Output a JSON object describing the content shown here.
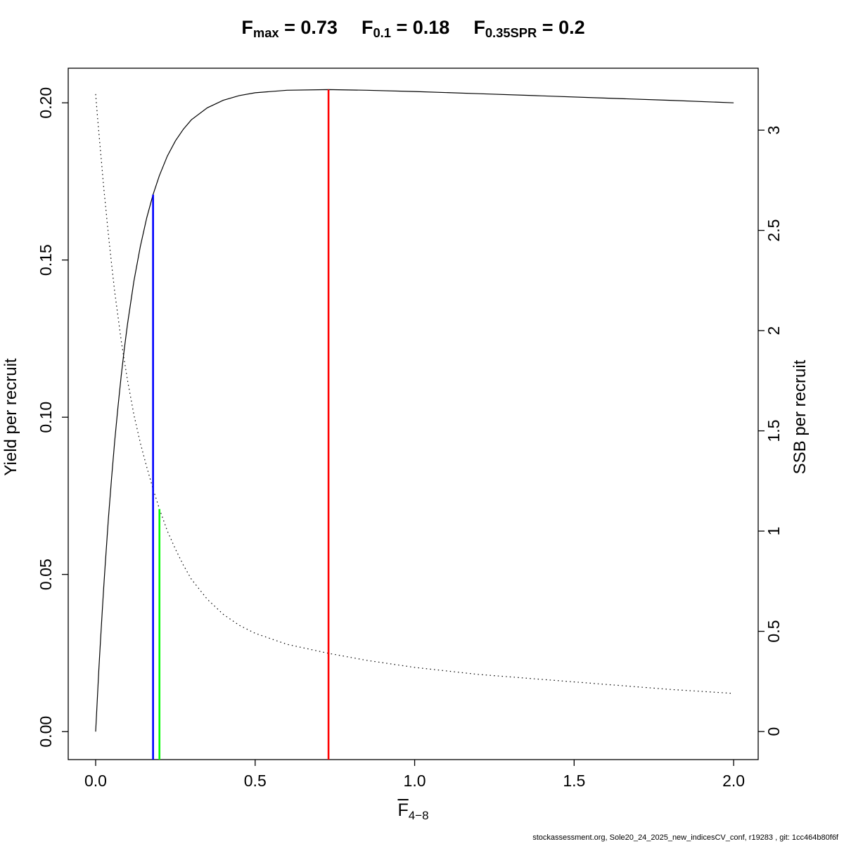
{
  "title": {
    "parts": [
      {
        "base": "F",
        "sub": "max",
        "eq": " = 0.73"
      },
      {
        "base": "F",
        "sub": "0.1",
        "eq": " = 0.18"
      },
      {
        "base": "F",
        "sub": "0.35SPR",
        "eq": " = 0.2"
      }
    ]
  },
  "axes": {
    "x": {
      "label_base": "F",
      "label_sub": "4−8",
      "ticks": [
        0,
        0.5,
        1,
        1.5,
        2
      ],
      "tick_labels": [
        "0.0",
        "0.5",
        "1.0",
        "1.5",
        "2.0"
      ],
      "range": [
        -0.086,
        2.077
      ]
    },
    "y_left": {
      "label": "Yield per recruit",
      "ticks": [
        0,
        0.05,
        0.1,
        0.15,
        0.2
      ],
      "tick_labels": [
        "0.00",
        "0.05",
        "0.10",
        "0.15",
        "0.20"
      ],
      "range": [
        -0.0089,
        0.211
      ]
    },
    "y_right": {
      "label": "SSB per recruit",
      "ticks": [
        0,
        0.5,
        1,
        1.5,
        2,
        2.5,
        3
      ],
      "tick_labels": [
        "0",
        "0.5",
        "1",
        "1.5",
        "2",
        "2.5",
        "3"
      ],
      "range": [
        -0.14,
        3.309
      ]
    }
  },
  "chart_data": {
    "type": "line",
    "title": "F_max = 0.73   F_0.1 = 0.18   F_0.35SPR = 0.2",
    "xlabel": "Fbar(4−8)",
    "ylabel_left": "Yield per recruit",
    "ylabel_right": "SSB per recruit",
    "x_range": [
      -0.086,
      2.077
    ],
    "grid": false,
    "reference_points": [
      {
        "name": "F_max",
        "value": 0.73,
        "color": "#ff0000"
      },
      {
        "name": "F_0.1",
        "value": 0.18,
        "color": "#0000ff"
      },
      {
        "name": "F_0.35SPR",
        "value": 0.2,
        "color": "#00ff00"
      }
    ],
    "series": [
      {
        "name": "Yield per recruit",
        "axis": "left",
        "style": "solid",
        "color": "#000000",
        "x": [
          0,
          0.005,
          0.01,
          0.015,
          0.02,
          0.025,
          0.03,
          0.04,
          0.05,
          0.06,
          0.07,
          0.08,
          0.09,
          0.1,
          0.12,
          0.14,
          0.16,
          0.18,
          0.2,
          0.225,
          0.25,
          0.275,
          0.3,
          0.35,
          0.4,
          0.45,
          0.5,
          0.6,
          0.73,
          0.85,
          1,
          1.2,
          1.4,
          1.6,
          1.8,
          2
        ],
        "y": [
          0,
          0.01,
          0.0196,
          0.0286,
          0.0372,
          0.0453,
          0.0531,
          0.0677,
          0.0808,
          0.0927,
          0.1034,
          0.1131,
          0.1218,
          0.1298,
          0.1433,
          0.1543,
          0.1634,
          0.1708,
          0.1769,
          0.1831,
          0.1879,
          0.1916,
          0.1946,
          0.1984,
          0.2008,
          0.2023,
          0.2032,
          0.204,
          0.2042,
          0.204,
          0.2036,
          0.2029,
          0.2022,
          0.2015,
          0.2008,
          0.2
        ]
      },
      {
        "name": "SSB per recruit",
        "axis": "right",
        "style": "dotted",
        "color": "#000000",
        "x": [
          0,
          0.005,
          0.01,
          0.015,
          0.02,
          0.025,
          0.03,
          0.04,
          0.05,
          0.06,
          0.07,
          0.08,
          0.09,
          0.1,
          0.12,
          0.14,
          0.16,
          0.18,
          0.2,
          0.225,
          0.25,
          0.275,
          0.3,
          0.35,
          0.4,
          0.45,
          0.5,
          0.6,
          0.73,
          0.85,
          1,
          1.2,
          1.4,
          1.6,
          1.8,
          2
        ],
        "y": [
          3.18,
          3.08,
          2.99,
          2.9,
          2.81,
          2.72,
          2.64,
          2.48,
          2.33,
          2.19,
          2.07,
          1.95,
          1.85,
          1.75,
          1.58,
          1.44,
          1.32,
          1.21,
          1.11,
          1.0,
          0.91,
          0.83,
          0.76,
          0.66,
          0.585,
          0.53,
          0.49,
          0.435,
          0.39,
          0.355,
          0.32,
          0.285,
          0.26,
          0.235,
          0.21,
          0.19
        ]
      }
    ],
    "vlines": [
      {
        "id": "fmax",
        "label": "F_max",
        "x": 0.73,
        "color": "#ff0000",
        "top_axis": "left"
      },
      {
        "id": "f01",
        "label": "F_0.1",
        "x": 0.18,
        "color": "#0000ff",
        "top_axis": "left"
      },
      {
        "id": "f035spr",
        "label": "F_0.35SPR",
        "x": 0.2,
        "color": "#00ff00",
        "top_axis": "right"
      }
    ]
  },
  "footer": {
    "text": "stockassessment.org, Sole20_24_2025_new_indicesCV_conf, r19283 , git: 1cc464b80f6f"
  }
}
